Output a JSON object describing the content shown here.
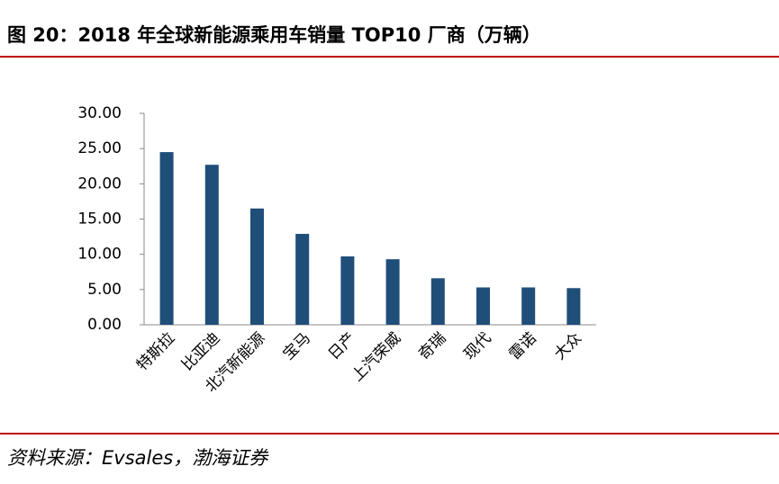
{
  "chart_data": {
    "type": "bar",
    "title": "图 20：2018 年全球新能源乘用车销量 TOP10 厂商（万辆）",
    "source": "资料来源：Evsales，渤海证券",
    "categories": [
      "特斯拉",
      "比亚迪",
      "北汽新能源",
      "宝马",
      "日产",
      "上汽荣威",
      "奇瑞",
      "现代",
      "雷诺",
      "大众"
    ],
    "values": [
      24.5,
      22.7,
      16.5,
      12.9,
      9.7,
      9.3,
      6.6,
      5.3,
      5.3,
      5.2
    ],
    "color": "#1f4e79",
    "ylim": [
      0,
      30
    ],
    "yticks": [
      {
        "value": 0,
        "label": "0.00"
      },
      {
        "value": 5,
        "label": "5.00"
      },
      {
        "value": 10,
        "label": "10.00"
      },
      {
        "value": 15,
        "label": "15.00"
      },
      {
        "value": 20,
        "label": "20.00"
      },
      {
        "value": 25,
        "label": "25.00"
      },
      {
        "value": 30,
        "label": "30.00"
      }
    ],
    "grid": false
  }
}
